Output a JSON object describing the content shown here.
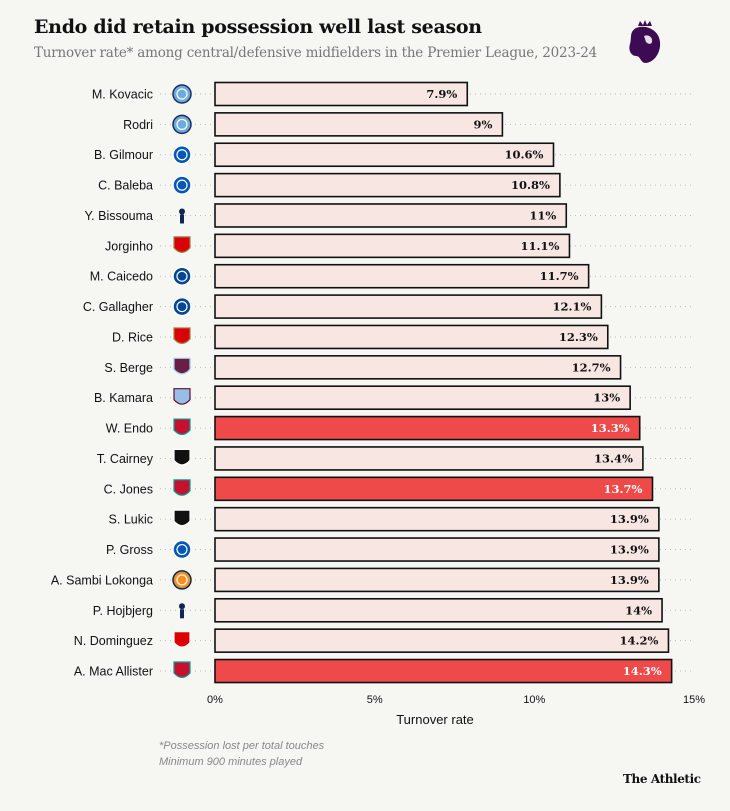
{
  "header": {
    "title": "Endo did retain possession well last season",
    "subtitle": "Turnover rate* among central/defensive midfielders in the Premier League, 2023-24",
    "logo": "premier-league-lion-icon"
  },
  "footer": {
    "note_line1": "*Possession lost per total touches",
    "note_line2": "Minimum 900 minutes played",
    "brand": "The Athletic"
  },
  "colors": {
    "background": "#f6f6f2",
    "bar_default": "#f8e6e3",
    "bar_highlight": "#ee4a4a",
    "bar_stroke": "#111111",
    "grid_dots": "#bbbbbb"
  },
  "chart_data": {
    "type": "bar",
    "orientation": "horizontal",
    "title": "Endo did retain possession well last season",
    "subtitle": "Turnover rate* among central/defensive midfielders in the Premier League, 2023-24",
    "xlabel": "Turnover rate",
    "ylabel": "",
    "xlim": [
      0,
      15
    ],
    "xticks": [
      0,
      5,
      10,
      15
    ],
    "xtick_labels": [
      "0%",
      "5%",
      "10%",
      "15%"
    ],
    "grid": "dotted horizontal row guides",
    "categories": [
      "M. Kovacic",
      "Rodri",
      "B. Gilmour",
      "C. Baleba",
      "Y. Bissouma",
      "Jorginho",
      "M. Caicedo",
      "C. Gallagher",
      "D. Rice",
      "S. Berge",
      "B. Kamara",
      "W. Endo",
      "T. Cairney",
      "C. Jones",
      "S. Lukic",
      "P. Gross",
      "A. Sambi Lokonga",
      "P. Hojbjerg",
      "N. Dominguez",
      "A. Mac Allister"
    ],
    "clubs": [
      "Man City",
      "Man City",
      "Brighton",
      "Brighton",
      "Tottenham",
      "Arsenal",
      "Chelsea",
      "Chelsea",
      "Arsenal",
      "Burnley",
      "Aston Villa",
      "Liverpool",
      "Fulham",
      "Liverpool",
      "Fulham",
      "Brighton",
      "Luton",
      "Tottenham",
      "Nott'm Forest",
      "Liverpool"
    ],
    "values": [
      7.9,
      9,
      10.6,
      10.8,
      11,
      11.1,
      11.7,
      12.1,
      12.3,
      12.7,
      13,
      13.3,
      13.4,
      13.7,
      13.9,
      13.9,
      13.9,
      14,
      14.2,
      14.3
    ],
    "value_labels": [
      "7.9%",
      "9%",
      "10.6%",
      "10.8%",
      "11%",
      "11.1%",
      "11.7%",
      "12.1%",
      "12.3%",
      "12.7%",
      "13%",
      "13.3%",
      "13.4%",
      "13.7%",
      "13.9%",
      "13.9%",
      "13.9%",
      "14%",
      "14.2%",
      "14.3%"
    ],
    "highlighted": [
      false,
      false,
      false,
      false,
      false,
      false,
      false,
      false,
      false,
      false,
      false,
      true,
      false,
      true,
      false,
      false,
      false,
      false,
      false,
      true
    ]
  }
}
